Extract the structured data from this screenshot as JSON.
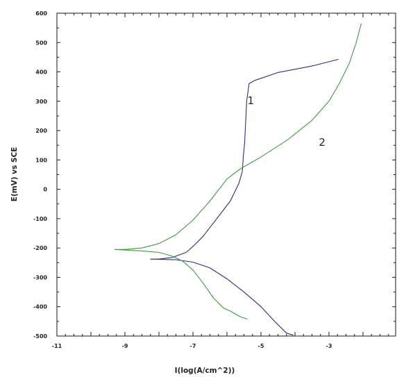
{
  "chart_data": {
    "type": "line",
    "title": "",
    "xlabel": "I(log(A/cm^2))",
    "ylabel": "E(mV) vs SCE",
    "xlim": [
      -11,
      -1
    ],
    "ylim": [
      -500,
      600
    ],
    "x_ticks": [
      -11,
      -9,
      -7,
      -5,
      -3
    ],
    "x_tick_labels": [
      "-11",
      "-9",
      "-7",
      "-5",
      "-3"
    ],
    "y_ticks": [
      600,
      500,
      400,
      300,
      200,
      100,
      0,
      -100,
      -200,
      -300,
      -400,
      -500
    ],
    "y_tick_labels": [
      "600",
      "500",
      "400",
      "300",
      "200",
      "100",
      "0",
      "-100",
      "-200",
      "-300",
      "-400",
      "-500"
    ],
    "grid": false,
    "legend": "none",
    "series": [
      {
        "name": "",
        "label": "1",
        "label_at": [
          -5.3,
          290
        ],
        "color": "#2a2f78",
        "points": [
          [
            -2.72,
            443
          ],
          [
            -3.5,
            420
          ],
          [
            -4.5,
            398
          ],
          [
            -5.2,
            370
          ],
          [
            -5.35,
            360
          ],
          [
            -5.42,
            300
          ],
          [
            -5.48,
            160
          ],
          [
            -5.52,
            110
          ],
          [
            -5.55,
            60
          ],
          [
            -5.65,
            20
          ],
          [
            -5.9,
            -40
          ],
          [
            -6.3,
            -100
          ],
          [
            -6.7,
            -160
          ],
          [
            -7.0,
            -195
          ],
          [
            -7.2,
            -215
          ],
          [
            -7.6,
            -232
          ],
          [
            -8.0,
            -238
          ],
          [
            -8.25,
            -238
          ],
          [
            -7.5,
            -240
          ],
          [
            -7.0,
            -248
          ],
          [
            -6.5,
            -268
          ],
          [
            -6.0,
            -305
          ],
          [
            -5.5,
            -350
          ],
          [
            -5.0,
            -400
          ],
          [
            -4.6,
            -450
          ],
          [
            -4.25,
            -490
          ],
          [
            -4.05,
            -497
          ]
        ]
      },
      {
        "name": "",
        "label": "2",
        "label_at": [
          -3.2,
          148
        ],
        "color": "#3f9a3f",
        "points": [
          [
            -2.05,
            565
          ],
          [
            -2.2,
            500
          ],
          [
            -2.4,
            430
          ],
          [
            -2.7,
            360
          ],
          [
            -3.0,
            300
          ],
          [
            -3.5,
            235
          ],
          [
            -4.2,
            170
          ],
          [
            -5.0,
            110
          ],
          [
            -5.6,
            70
          ],
          [
            -6.0,
            35
          ],
          [
            -6.5,
            -40
          ],
          [
            -7.0,
            -105
          ],
          [
            -7.5,
            -155
          ],
          [
            -8.0,
            -185
          ],
          [
            -8.5,
            -200
          ],
          [
            -9.0,
            -205
          ],
          [
            -9.3,
            -205
          ],
          [
            -8.5,
            -210
          ],
          [
            -8.0,
            -215
          ],
          [
            -7.6,
            -228
          ],
          [
            -7.3,
            -245
          ],
          [
            -7.0,
            -275
          ],
          [
            -6.7,
            -320
          ],
          [
            -6.4,
            -370
          ],
          [
            -6.1,
            -405
          ],
          [
            -5.9,
            -415
          ],
          [
            -5.6,
            -435
          ],
          [
            -5.4,
            -442
          ]
        ]
      }
    ]
  }
}
